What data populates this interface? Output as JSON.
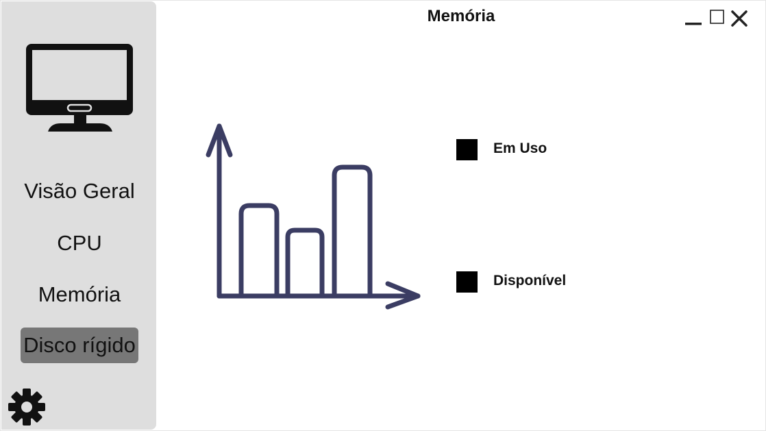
{
  "window": {
    "title": "Memória",
    "controls": [
      "minimize-icon",
      "maximize-icon",
      "close-icon"
    ]
  },
  "sidebar": {
    "logo_icon": "monitor-icon",
    "items": [
      {
        "label": "Visão Geral",
        "active": false
      },
      {
        "label": "CPU",
        "active": false
      },
      {
        "label": "Memória",
        "active": false
      },
      {
        "label": "Disco rígido",
        "active": true
      }
    ],
    "settings_icon": "gear-icon"
  },
  "main": {
    "illustration_icon": "bar-chart-icon",
    "legend": [
      {
        "label": "Em Uso",
        "color": "#000000"
      },
      {
        "label": "Disponível",
        "color": "#000000"
      }
    ]
  },
  "colors": {
    "sidebar_bg": "#dedede",
    "active_item": "#777777",
    "chart_stroke": "#3b3d63"
  }
}
